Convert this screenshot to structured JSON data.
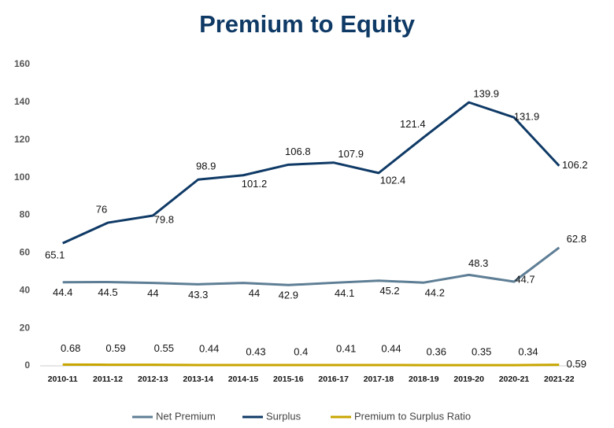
{
  "chart_data": {
    "type": "line",
    "title": "Premium to Equity",
    "categories": [
      "2010-11",
      "2011-12",
      "2012-13",
      "2013-14",
      "2014-15",
      "2015-16",
      "2016-17",
      "2017-18",
      "2018-19",
      "2019-20",
      "2020-21",
      "2021-22"
    ],
    "series": [
      {
        "name": "Net Premium",
        "color": "#5e7e95",
        "values": [
          44.4,
          44.5,
          44,
          43.3,
          44,
          42.9,
          44.1,
          45.2,
          44.2,
          48.3,
          44.7,
          62.8
        ]
      },
      {
        "name": "Surplus",
        "color": "#0f3a66",
        "values": [
          65.1,
          76,
          79.8,
          98.9,
          101.2,
          106.8,
          107.9,
          102.4,
          121.4,
          139.9,
          131.9,
          106.2
        ]
      },
      {
        "name": "Premium to Surplus Ratio",
        "color": "#c8a600",
        "values": [
          0.68,
          0.59,
          0.55,
          0.44,
          0.43,
          0.4,
          0.41,
          0.44,
          0.36,
          0.35,
          0.34,
          0.59
        ]
      }
    ],
    "ylim": [
      0,
      160
    ],
    "yticks": [
      0,
      20,
      40,
      60,
      80,
      100,
      120,
      140,
      160
    ],
    "grid": false,
    "legend": "bottom"
  }
}
